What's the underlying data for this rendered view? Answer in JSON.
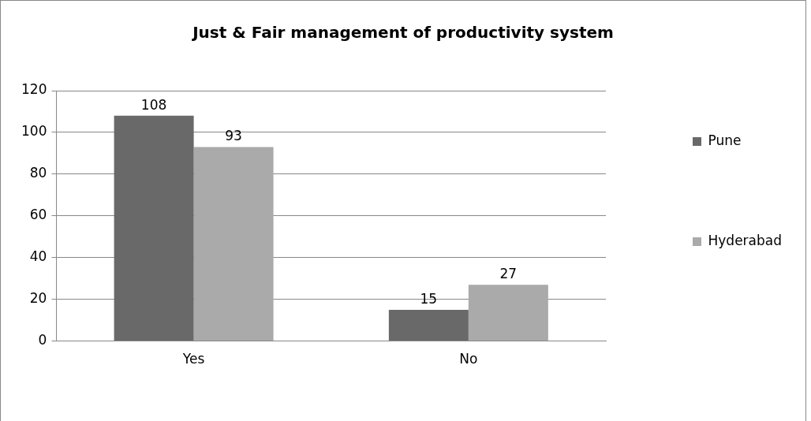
{
  "chart_data": {
    "type": "bar",
    "title": "Just & Fair management of productivity system",
    "categories": [
      "Yes",
      "No"
    ],
    "series": [
      {
        "name": "Pune",
        "color": "#696969",
        "values": [
          108,
          15
        ]
      },
      {
        "name": "Hyderabad",
        "color": "#aaaaaa",
        "values": [
          93,
          27
        ]
      }
    ],
    "ylim": [
      0,
      120
    ],
    "yticks": [
      0,
      20,
      40,
      60,
      80,
      100,
      120
    ],
    "grid": "y",
    "legend": "right",
    "data_labels": true
  }
}
